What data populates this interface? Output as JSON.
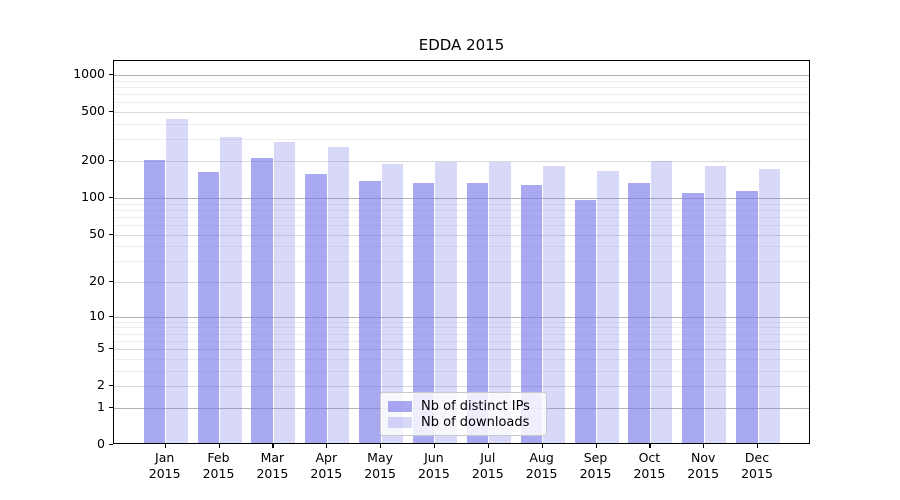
{
  "chart_data": {
    "type": "bar",
    "title": "EDDA 2015",
    "categories": [
      "Jan",
      "Feb",
      "Mar",
      "Apr",
      "May",
      "Jun",
      "Jul",
      "Aug",
      "Sep",
      "Oct",
      "Nov",
      "Dec"
    ],
    "x_tick_year_line": "2015",
    "series": [
      {
        "name": "Nb of distinct IPs",
        "color": "rgba(120,120,235,0.64)",
        "values": [
          195,
          158,
          203,
          150,
          133,
          128,
          127,
          122,
          93,
          127,
          106,
          110
        ]
      },
      {
        "name": "Nb of downloads",
        "color": "rgba(120,120,235,0.29)",
        "values": [
          420,
          300,
          278,
          252,
          184,
          191,
          188,
          174,
          161,
          194,
          177,
          165
        ]
      }
    ],
    "y_ticks": [
      0,
      1,
      2,
      5,
      10,
      20,
      50,
      100,
      200,
      500,
      1000
    ],
    "y_minor_gridlines": [
      3,
      4,
      6,
      7,
      8,
      9,
      30,
      40,
      60,
      70,
      80,
      90,
      300,
      400,
      600,
      700,
      800,
      900
    ],
    "y_scale": "symlog (position proportional to log10(1+value))",
    "ylabel": "",
    "xlabel": "",
    "grid": true,
    "legend_position": "lower center"
  },
  "colors": {
    "background": "#ffffff",
    "spine": "#000000",
    "bar_base": "#7878eb",
    "grid_decade": "#b3b3b3",
    "grid_labeled": "#d9d9d9",
    "grid_minor": "#ededed",
    "legend_border": "#c9c9c9"
  }
}
